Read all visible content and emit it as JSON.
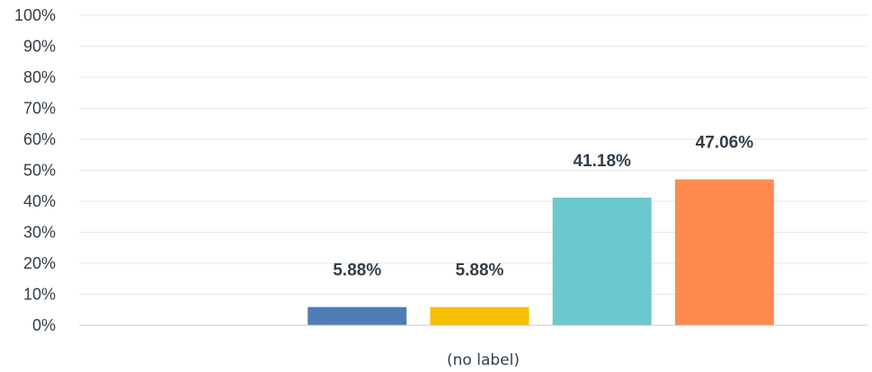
{
  "chart_data": {
    "type": "bar",
    "categories": [
      "(no label)"
    ],
    "series": [
      {
        "values": [
          0
        ],
        "color": "#1f9ede"
      },
      {
        "values": [
          5.88
        ],
        "color": "#507cb6"
      },
      {
        "values": [
          5.88
        ],
        "color": "#f6c000"
      },
      {
        "values": [
          41.18
        ],
        "color": "#6bc8cd"
      },
      {
        "values": [
          47.06
        ],
        "color": "#ff8b4f"
      }
    ],
    "data_labels": [
      "",
      "5.88%",
      "5.88%",
      "41.18%",
      "47.06%"
    ],
    "y_ticks": [
      "0%",
      "10%",
      "20%",
      "30%",
      "40%",
      "50%",
      "60%",
      "70%",
      "80%",
      "90%",
      "100%"
    ],
    "ylim": [
      0,
      100
    ],
    "grid": true,
    "legend": "none",
    "title": "",
    "xlabel": "",
    "ylabel": ""
  }
}
